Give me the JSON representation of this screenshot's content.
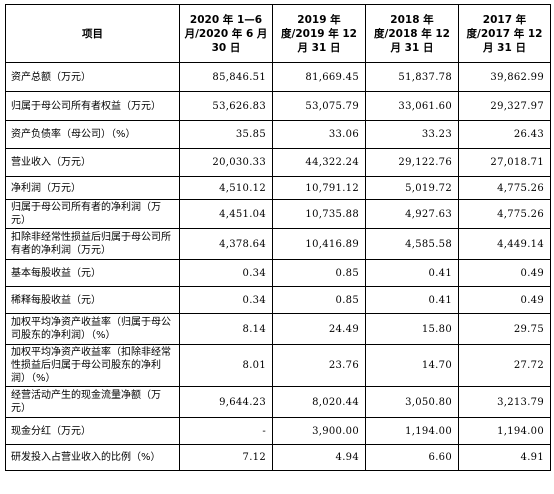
{
  "header": {
    "item": "项目",
    "periods": [
      "2020 年 1—6 月/2020 年 6 月 30 日",
      "2019 年度/2019 年 12 月 31 日",
      "2018 年度/2018 年 12 月 31 日",
      "2017 年度/2017 年 12 月 31 日"
    ]
  },
  "rows": [
    {
      "label": "资产总额（万元）",
      "values": [
        "85,846.51",
        "81,669.45",
        "51,837.78",
        "39,862.99"
      ]
    },
    {
      "label": "归属于母公司所有者权益（万元）",
      "values": [
        "53,626.83",
        "53,075.79",
        "33,061.60",
        "29,327.97"
      ]
    },
    {
      "label": "资产负债率（母公司）（%）",
      "values": [
        "35.85",
        "33.06",
        "33.23",
        "26.43"
      ]
    },
    {
      "label": "营业收入（万元）",
      "values": [
        "20,030.33",
        "44,322.24",
        "29,122.76",
        "27,018.71"
      ]
    },
    {
      "label": "净利润（万元）",
      "values": [
        "4,510.12",
        "10,791.12",
        "5,019.72",
        "4,775.26"
      ]
    },
    {
      "label": "归属于母公司所有者的净利润（万元）",
      "values": [
        "4,451.04",
        "10,735.88",
        "4,927.63",
        "4,775.26"
      ]
    },
    {
      "label": "扣除非经常性损益后归属于母公司所有者的净利润（万元）",
      "values": [
        "4,378.64",
        "10,416.89",
        "4,585.58",
        "4,449.14"
      ]
    },
    {
      "label": "基本每股收益（元）",
      "values": [
        "0.34",
        "0.85",
        "0.41",
        "0.49"
      ]
    },
    {
      "label": "稀释每股收益（元）",
      "values": [
        "0.34",
        "0.85",
        "0.41",
        "0.49"
      ]
    },
    {
      "label": "加权平均净资产收益率（归属于母公司股东的净利润）（%）",
      "values": [
        "8.14",
        "24.49",
        "15.80",
        "29.75"
      ]
    },
    {
      "label": "加权平均净资产收益率（扣除非经常性损益后归属于母公司股东的净利润）（%）",
      "values": [
        "8.01",
        "23.76",
        "14.70",
        "27.72"
      ]
    },
    {
      "label": "经营活动产生的现金流量净额（万元）",
      "values": [
        "9,644.23",
        "8,020.44",
        "3,050.80",
        "3,213.79"
      ]
    },
    {
      "label": "现金分红（万元）",
      "values": [
        "-",
        "3,900.00",
        "1,194.00",
        "1,194.00"
      ]
    },
    {
      "label": "研发投入占营业收入的比例（%）",
      "values": [
        "7.12",
        "4.94",
        "6.60",
        "4.91"
      ]
    }
  ]
}
